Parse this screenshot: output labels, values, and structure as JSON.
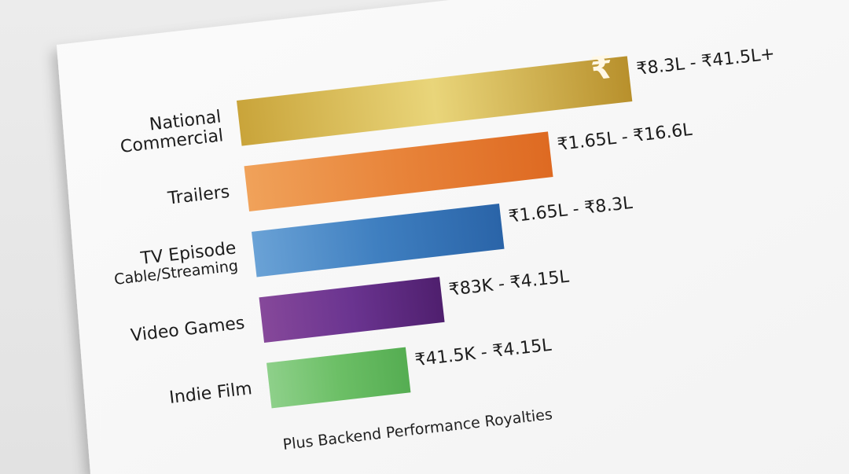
{
  "chart_data": {
    "type": "bar",
    "orientation": "horizontal",
    "categories": [
      {
        "line1": "National",
        "line2": "Commercial"
      },
      {
        "line1": "Trailers",
        "line2": ""
      },
      {
        "line1": "TV Episode",
        "line2": "Cable/Streaming"
      },
      {
        "line1": "Video Games",
        "line2": ""
      },
      {
        "line1": "Indie Film",
        "line2": ""
      }
    ],
    "series": [
      {
        "value_labels": [
          "₹8.3L - ₹41.5L+",
          "₹1.65L - ₹16.6L",
          "₹1.65L - ₹8.3L",
          "₹83K - ₹4.15L",
          "₹41.5K - ₹4.15L"
        ],
        "ranges_inr": [
          [
            830000,
            4150000
          ],
          [
            165000,
            1660000
          ],
          [
            165000,
            830000
          ],
          [
            83000,
            415000
          ],
          [
            41500,
            415000
          ]
        ]
      }
    ],
    "bar_colors": [
      [
        "#c9a43a",
        "#e9d57a",
        "#b8902c"
      ],
      [
        "#f0a25a",
        "#e8843a",
        "#de6a22"
      ],
      [
        "#6aa2d6",
        "#3f7fc0",
        "#2a64a8"
      ],
      [
        "#86489a",
        "#6a3490",
        "#4f1f6e"
      ],
      [
        "#8ed08a",
        "#6cbf66",
        "#55ad52"
      ]
    ],
    "bar_icon": "rupee-icon",
    "bar_icon_glyph": "₹",
    "footnote": "Plus Backend Performance Royalties",
    "grid": false,
    "legend": "none"
  }
}
